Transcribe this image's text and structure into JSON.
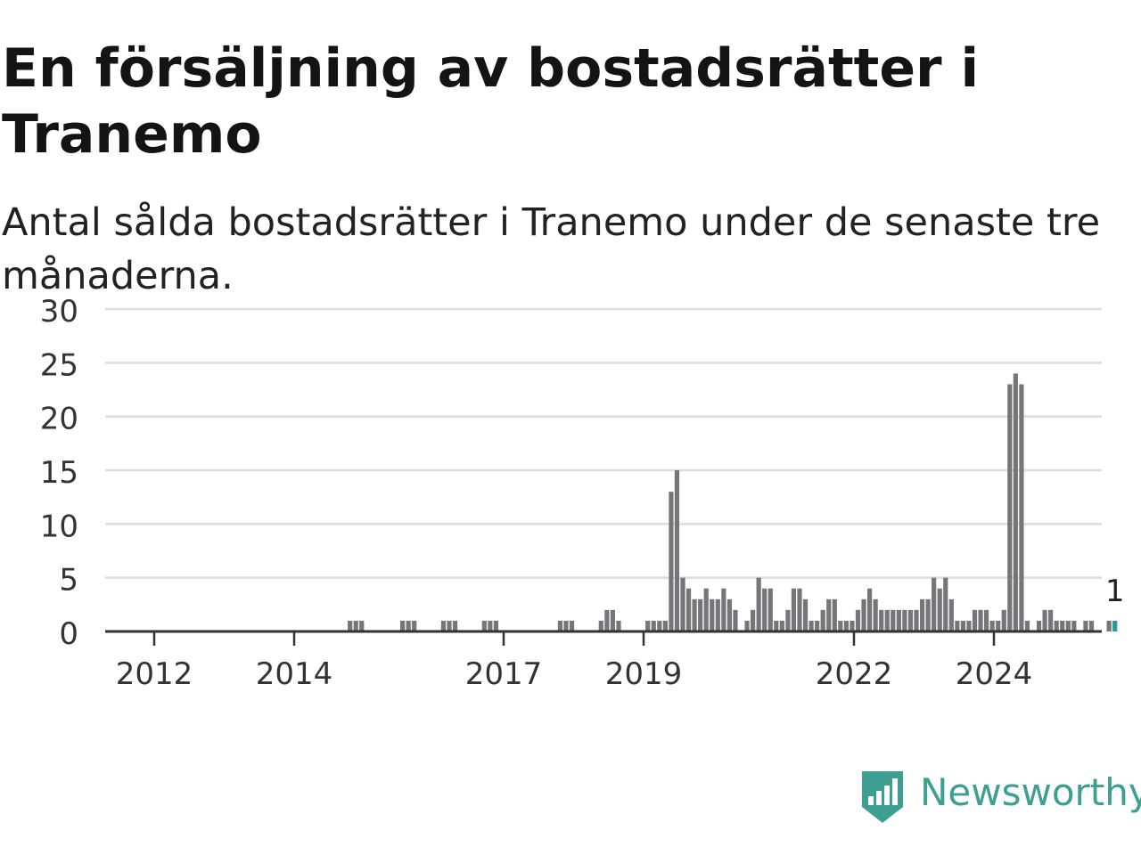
{
  "title": "En försäljning av bostadsrätter i Tranemo",
  "subtitle": "Antal sålda bostadsrätter i Tranemo under de senaste tre månaderna.",
  "brand": {
    "name": "Newsworthy",
    "color": "#3d9e92",
    "icon": "newsworthy-logo-icon"
  },
  "colors": {
    "bar": "#76767a",
    "highlight": "#2a9d8f",
    "grid": "#dcdcdc",
    "axis": "#333333"
  },
  "chart_data": {
    "type": "bar",
    "title": "En försäljning av bostadsrätter i Tranemo",
    "subtitle": "Antal sålda bostadsrätter i Tranemo under de senaste tre månaderna.",
    "xlabel": "",
    "ylabel": "",
    "ylim": [
      0,
      30
    ],
    "yticks": [
      0,
      5,
      10,
      15,
      20,
      25,
      30
    ],
    "xtick_labels": [
      "2012",
      "2014",
      "2017",
      "2019",
      "2022",
      "2024"
    ],
    "grid": true,
    "values": [
      0,
      0,
      0,
      0,
      0,
      0,
      0,
      0,
      0,
      0,
      0,
      0,
      0,
      0,
      0,
      0,
      0,
      0,
      0,
      0,
      0,
      0,
      0,
      0,
      0,
      0,
      0,
      0,
      0,
      0,
      0,
      0,
      0,
      0,
      0,
      0,
      0,
      0,
      0,
      0,
      0,
      1,
      1,
      1,
      0,
      0,
      0,
      0,
      0,
      0,
      1,
      1,
      1,
      0,
      0,
      0,
      0,
      1,
      1,
      1,
      0,
      0,
      0,
      0,
      1,
      1,
      1,
      0,
      0,
      0,
      0,
      0,
      0,
      0,
      0,
      0,
      0,
      1,
      1,
      1,
      0,
      0,
      0,
      0,
      1,
      2,
      2,
      1,
      0,
      0,
      0,
      0,
      1,
      1,
      1,
      1,
      13,
      15,
      5,
      4,
      3,
      3,
      4,
      3,
      3,
      4,
      3,
      2,
      0,
      1,
      2,
      5,
      4,
      4,
      1,
      1,
      2,
      4,
      4,
      3,
      1,
      1,
      2,
      3,
      3,
      1,
      1,
      1,
      2,
      3,
      4,
      3,
      2,
      2,
      2,
      2,
      2,
      2,
      2,
      3,
      3,
      5,
      4,
      5,
      3,
      1,
      1,
      1,
      2,
      2,
      2,
      1,
      1,
      2,
      23,
      24,
      23,
      1,
      0,
      1,
      2,
      2,
      1,
      1,
      1,
      1,
      0,
      1,
      1,
      0,
      0,
      1,
      1
    ],
    "last_value_label": "1",
    "highlight": "last"
  }
}
